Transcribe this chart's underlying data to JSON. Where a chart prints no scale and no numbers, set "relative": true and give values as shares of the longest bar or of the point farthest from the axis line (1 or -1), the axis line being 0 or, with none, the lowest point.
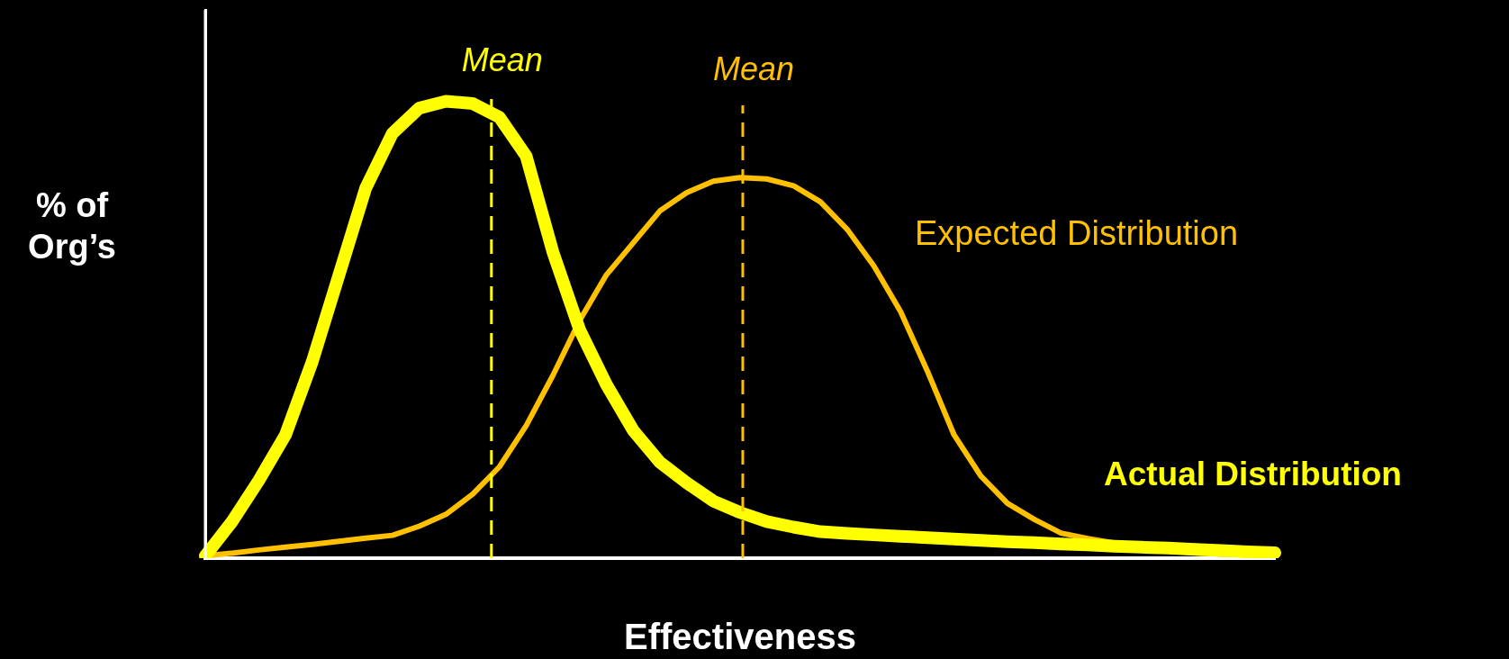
{
  "chart_data": {
    "type": "line",
    "relative": true,
    "xlabel": "Effectiveness",
    "ylabel": "% of Org’s",
    "tick_labels": false,
    "legend": false,
    "marker": "none",
    "categories": [
      null,
      null,
      null,
      null,
      null,
      null,
      null,
      null,
      null,
      null,
      null,
      null,
      null,
      null,
      null,
      null,
      null,
      null,
      null,
      null,
      null,
      null,
      null,
      null,
      null,
      null,
      null,
      null,
      null,
      null,
      null,
      null,
      null,
      null,
      null,
      null,
      null,
      null,
      null,
      null,
      null
    ],
    "series": [
      {
        "name": "Actual Distribution",
        "color": "#ffff00",
        "values": [
          0.005,
          0.08,
          0.17,
          0.27,
          0.43,
          0.62,
          0.81,
          0.93,
          0.985,
          1,
          0.995,
          0.965,
          0.88,
          0.67,
          0.5,
          0.38,
          0.28,
          0.21,
          0.165,
          0.125,
          0.1,
          0.08,
          0.068,
          0.058,
          0.054,
          0.051,
          0.048,
          0.045,
          0.042,
          0.039,
          0.036,
          0.034,
          0.031,
          0.029,
          0.026,
          0.024,
          0.022,
          0.019,
          0.017,
          0.014,
          0.012
        ]
      },
      {
        "name": "Expected Distribution",
        "color": "#ffc000",
        "values": [
          0.005,
          0.011,
          0.018,
          0.024,
          0.03,
          0.037,
          0.044,
          0.05,
          0.07,
          0.096,
          0.14,
          0.2,
          0.29,
          0.4,
          0.52,
          0.62,
          0.69,
          0.76,
          0.8,
          0.825,
          0.833,
          0.83,
          0.815,
          0.78,
          0.72,
          0.64,
          0.54,
          0.41,
          0.27,
          0.18,
          0.12,
          0.085,
          0.055,
          0.043,
          0.033,
          0.024,
          0.017,
          0.012,
          0.009,
          0.007,
          0.005
        ]
      }
    ],
    "annotations": [
      "Mean",
      "Mean"
    ]
  }
}
